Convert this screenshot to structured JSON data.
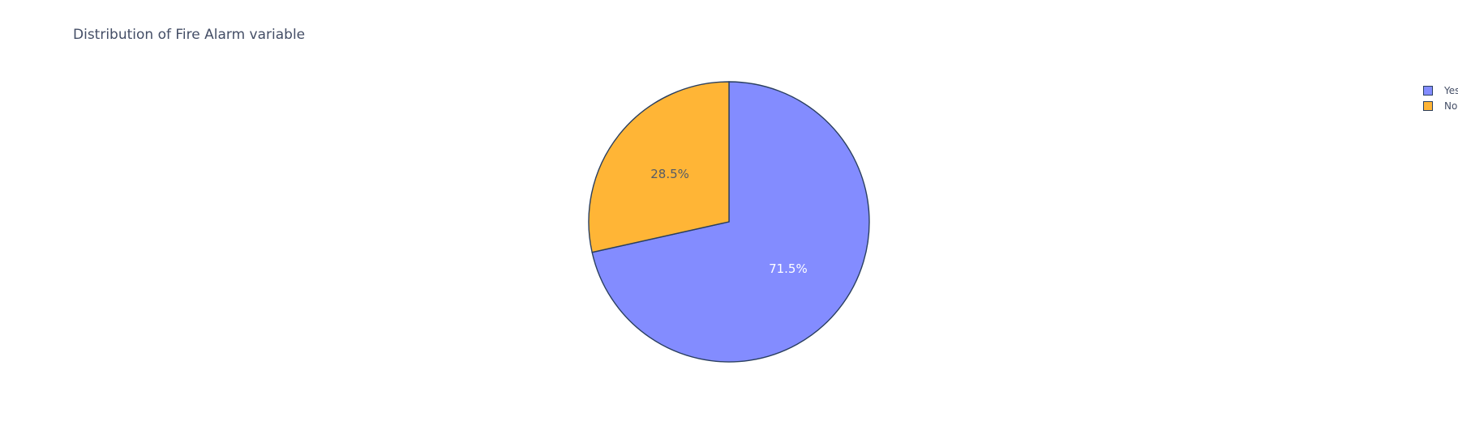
{
  "chart_data": {
    "type": "pie",
    "title": "Distribution of Fire Alarm variable",
    "labels": [
      "Yes",
      "No"
    ],
    "values": [
      71.5,
      28.5
    ],
    "text_labels": [
      "71.5%",
      "28.5%"
    ],
    "colors": [
      "#838cff",
      "#ffb536"
    ],
    "label_colors": [
      "#ffffff",
      "#555b66"
    ],
    "outline_color": "#2a3f5f",
    "legend": {
      "placement": "top-right",
      "items": [
        {
          "label": "Yes",
          "color": "#838cff"
        },
        {
          "label": "No",
          "color": "#ffb536"
        }
      ]
    }
  }
}
